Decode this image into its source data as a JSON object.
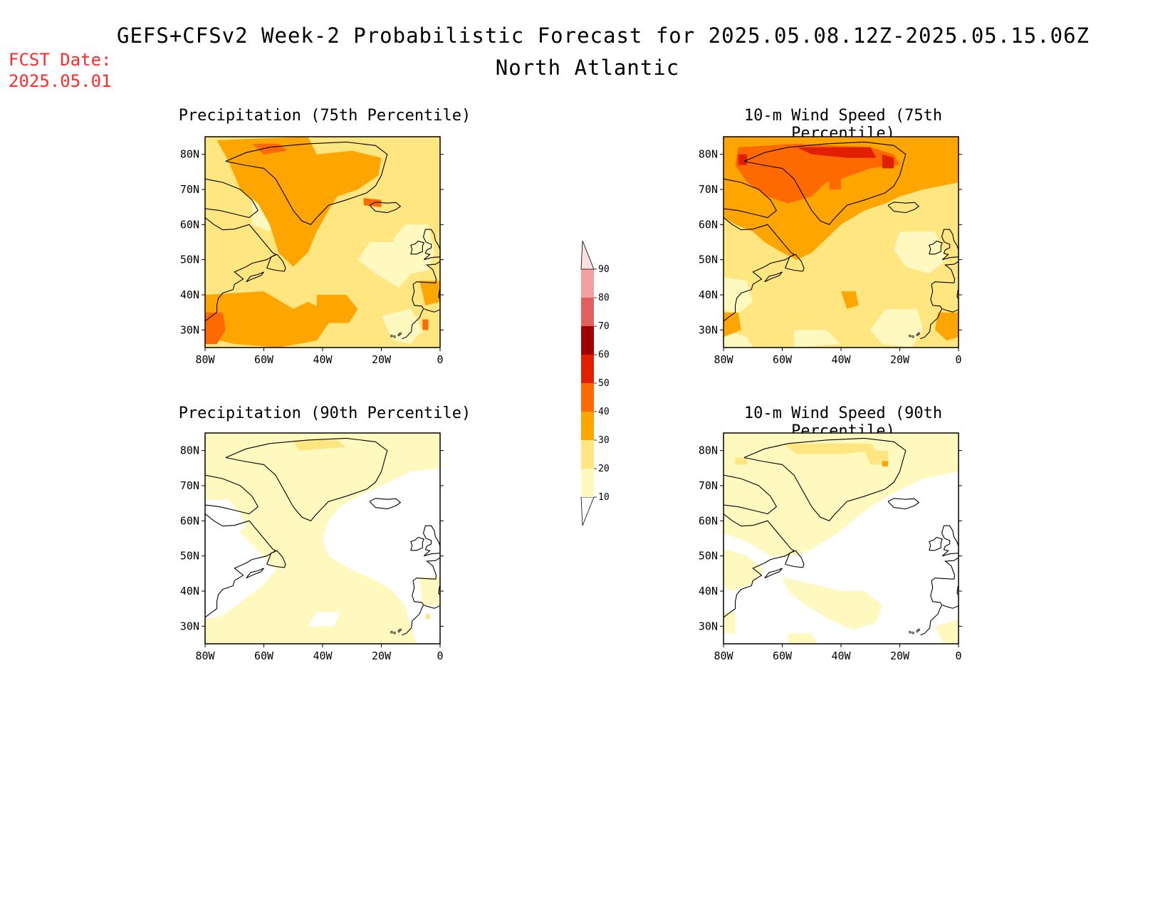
{
  "title": {
    "line1": "GEFS+CFSv2 Week-2 Probabilistic Forecast for 2025.05.08.12Z-2025.05.15.06Z",
    "line2": "North Atlantic"
  },
  "fcst": {
    "label": "FCST Date:",
    "date": "2025.05.01"
  },
  "panels": [
    {
      "title": "Precipitation (75th Percentile)",
      "variable": "precipitation",
      "percentile": 75
    },
    {
      "title": "10-m Wind Speed (75th Percentile)",
      "variable": "wind_speed_10m",
      "percentile": 75
    },
    {
      "title": "Precipitation (90th Percentile)",
      "variable": "precipitation",
      "percentile": 90
    },
    {
      "title": "10-m Wind Speed (90th Percentile)",
      "variable": "wind_speed_10m",
      "percentile": 90
    }
  ],
  "axes": {
    "lat_labels": [
      "80N",
      "70N",
      "60N",
      "50N",
      "40N",
      "30N"
    ],
    "lon_labels": [
      "80W",
      "60W",
      "40W",
      "20W",
      "0"
    ]
  },
  "colorbar": {
    "levels": [
      "10",
      "20",
      "30",
      "40",
      "50",
      "60",
      "70",
      "80",
      "90"
    ],
    "colors": [
      "#fff8bf",
      "#ffe680",
      "#ffa500",
      "#ff6a00",
      "#e02000",
      "#a00000",
      "#e06060",
      "#f4a0a0",
      "#ffe0e0"
    ]
  },
  "colors": {
    "fcst_text": "#ff2a2a",
    "c10": "#fff8bf",
    "c20": "#ffe680",
    "c30": "#ffa500",
    "c40": "#ff6a00",
    "c50": "#e02000"
  }
}
